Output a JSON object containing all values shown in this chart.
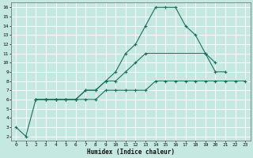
{
  "xlabel": "Humidex (Indice chaleur)",
  "bg_color": "#c5e8e0",
  "grid_color": "#ffffff",
  "line_color": "#1a7060",
  "xlim": [
    -0.5,
    23.5
  ],
  "ylim": [
    1.5,
    16.5
  ],
  "xticks": [
    0,
    1,
    2,
    3,
    4,
    5,
    6,
    7,
    8,
    9,
    10,
    11,
    12,
    13,
    14,
    15,
    16,
    17,
    18,
    19,
    20,
    21,
    22,
    23
  ],
  "yticks": [
    2,
    3,
    4,
    5,
    6,
    7,
    8,
    9,
    10,
    11,
    12,
    13,
    14,
    15,
    16
  ],
  "line1_x": [
    0,
    1,
    2,
    3,
    4,
    5,
    6,
    7,
    8,
    9,
    10,
    11,
    12,
    13,
    14,
    15,
    16,
    17,
    18,
    19,
    20,
    21
  ],
  "line1_y": [
    3,
    2,
    6,
    6,
    6,
    6,
    6,
    7,
    7,
    8,
    9,
    11,
    12,
    14,
    16,
    16,
    16,
    14,
    13,
    11,
    9,
    9
  ],
  "line2_x": [
    2,
    3,
    4,
    5,
    6,
    7,
    8,
    9,
    10,
    11,
    12,
    13,
    19,
    20
  ],
  "line2_y": [
    6,
    6,
    6,
    6,
    6,
    7,
    7,
    8,
    8,
    9,
    10,
    11,
    11,
    10
  ],
  "line3_x": [
    2,
    3,
    4,
    5,
    6,
    7,
    8,
    9,
    10,
    11,
    12,
    13,
    14,
    15,
    16,
    17,
    18,
    19,
    20,
    21,
    22,
    23
  ],
  "line3_y": [
    6,
    6,
    6,
    6,
    6,
    6,
    6,
    7,
    7,
    7,
    7,
    7,
    8,
    8,
    8,
    8,
    8,
    8,
    8,
    8,
    8,
    8
  ]
}
